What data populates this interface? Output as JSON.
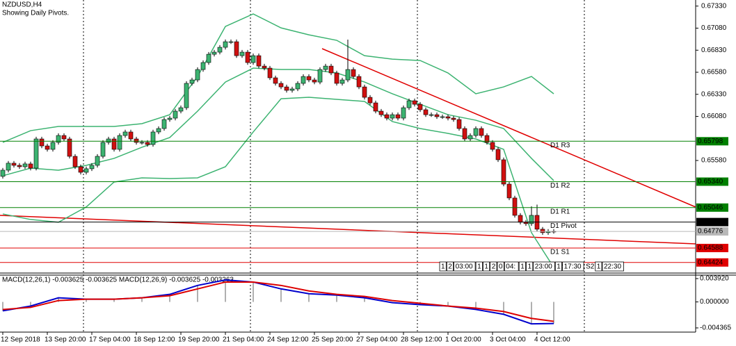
{
  "chart_data": [
    {
      "type": "candlestick",
      "title": "NZDUSD,H4",
      "subtitle": "Showing Daily Pivots.",
      "categories": [
        "12 Sep 2018",
        null,
        null,
        null,
        null,
        null,
        null,
        null,
        "13 Sep 20:00",
        null,
        null,
        null,
        null,
        null,
        null,
        null,
        "17 Sep 04:00",
        null,
        null,
        null,
        null,
        null,
        null,
        null,
        "18 Sep 12:00",
        null,
        null,
        null,
        null,
        null,
        null,
        null,
        "19 Sep 20:00",
        null,
        null,
        null,
        null,
        null,
        null,
        null,
        "21 Sep 04:00",
        null,
        null,
        null,
        null,
        null,
        null,
        null,
        "24 Sep 12:00",
        null,
        null,
        null,
        null,
        null,
        null,
        null,
        "25 Sep 20:00",
        null,
        null,
        null,
        null,
        null,
        null,
        null,
        "27 Sep 04:00",
        null,
        null,
        null,
        null,
        null,
        null,
        null,
        "28 Sep 12:00",
        null,
        null,
        null,
        null,
        null,
        null,
        null,
        "1 Oct 20:00",
        null,
        null,
        null,
        null,
        null,
        null,
        null,
        "3 Oct 04:00",
        null,
        null,
        null,
        null,
        null,
        null,
        null,
        "4 Oct 12:00",
        null,
        null,
        null
      ],
      "open": [
        0.654,
        0.6547,
        0.65549,
        0.65525,
        0.65509,
        0.65541,
        0.65493,
        0.65824,
        0.65745,
        0.65706,
        0.65785,
        0.65863,
        0.65824,
        0.65627,
        0.65509,
        0.65446,
        0.65486,
        0.65525,
        0.65627,
        0.65785,
        0.65824,
        0.65706,
        0.65863,
        0.65903,
        0.65824,
        0.65785,
        0.65785,
        0.65761,
        0.65903,
        0.65942,
        0.66044,
        0.6606,
        0.66139,
        0.66178,
        0.66454,
        0.66493,
        0.66611,
        0.6669,
        0.66784,
        0.66808,
        0.66863,
        0.66926,
        0.66926,
        0.66768,
        0.66808,
        0.6669,
        0.66768,
        0.6665,
        0.66627,
        0.66517,
        0.66454,
        0.66414,
        0.66375,
        0.66391,
        0.66454,
        0.66532,
        0.66493,
        0.66469,
        0.66611,
        0.6665,
        0.66572,
        0.66454,
        0.66493,
        0.66611,
        0.66532,
        0.66414,
        0.66296,
        0.66233,
        0.66139,
        0.66099,
        0.6606,
        0.66099,
        0.6606,
        0.66178,
        0.66257,
        0.66217,
        0.66155,
        0.66099,
        0.66099,
        0.66076,
        0.66076,
        0.6606,
        0.66044,
        0.65942,
        0.65824,
        0.65863,
        0.65942,
        0.65863,
        0.65785,
        0.65706,
        0.65588,
        0.65312,
        0.65155,
        0.64958,
        0.6488,
        0.64864,
        0.64958,
        0.64801,
        0.64762,
        0.64777
      ],
      "high": [
        0.65495,
        0.65574,
        0.65574,
        0.6555,
        0.65566,
        0.65566,
        0.65849,
        0.65849,
        0.6577,
        0.6581,
        0.65888,
        0.65888,
        0.65849,
        0.65652,
        0.65534,
        0.65511,
        0.6555,
        0.65652,
        0.6581,
        0.65849,
        0.65849,
        0.65888,
        0.65928,
        0.65928,
        0.65849,
        0.6581,
        0.6581,
        0.65928,
        0.65967,
        0.66069,
        0.66085,
        0.66164,
        0.66203,
        0.66479,
        0.66518,
        0.66636,
        0.66715,
        0.66809,
        0.66833,
        0.66888,
        0.66951,
        0.66951,
        0.66951,
        0.66833,
        0.66833,
        0.66793,
        0.66793,
        0.66675,
        0.66652,
        0.66542,
        0.66479,
        0.66439,
        0.66416,
        0.66479,
        0.66557,
        0.66557,
        0.66518,
        0.66636,
        0.66675,
        0.66675,
        0.66597,
        0.66518,
        0.6695,
        0.66636,
        0.66557,
        0.66439,
        0.66321,
        0.66258,
        0.66164,
        0.66124,
        0.66124,
        0.66124,
        0.66203,
        0.66282,
        0.66282,
        0.66242,
        0.6618,
        0.66124,
        0.66124,
        0.66101,
        0.66101,
        0.66085,
        0.66069,
        0.65967,
        0.65888,
        0.65967,
        0.65967,
        0.65888,
        0.6581,
        0.65731,
        0.65613,
        0.65337,
        0.6518,
        0.64983,
        0.64905,
        0.6506,
        0.6508,
        0.64826,
        0.64802,
        0.64802
      ],
      "low": [
        0.65375,
        0.65445,
        0.655,
        0.65484,
        0.65484,
        0.65468,
        0.65468,
        0.6572,
        0.65681,
        0.65681,
        0.6576,
        0.65799,
        0.65602,
        0.65484,
        0.65421,
        0.65421,
        0.65461,
        0.655,
        0.65602,
        0.6576,
        0.65681,
        0.65681,
        0.65838,
        0.65799,
        0.6576,
        0.6576,
        0.65736,
        0.65736,
        0.65878,
        0.65917,
        0.66019,
        0.66035,
        0.66114,
        0.66153,
        0.66429,
        0.66468,
        0.66586,
        0.66665,
        0.66759,
        0.66783,
        0.66838,
        0.66901,
        0.66743,
        0.66743,
        0.66665,
        0.66665,
        0.66625,
        0.66602,
        0.66492,
        0.66429,
        0.66389,
        0.6635,
        0.6635,
        0.66366,
        0.66429,
        0.66468,
        0.66444,
        0.66444,
        0.66586,
        0.66547,
        0.66429,
        0.66429,
        0.66468,
        0.66507,
        0.66389,
        0.66271,
        0.66208,
        0.66114,
        0.66074,
        0.66035,
        0.66035,
        0.66035,
        0.66035,
        0.66153,
        0.66192,
        0.6613,
        0.66074,
        0.66074,
        0.66051,
        0.66051,
        0.66035,
        0.66019,
        0.65917,
        0.65799,
        0.65799,
        0.65838,
        0.65838,
        0.6576,
        0.65681,
        0.65563,
        0.65287,
        0.6513,
        0.64933,
        0.64855,
        0.64839,
        0.64839,
        0.64776,
        0.64737,
        0.64737,
        0.64751
      ],
      "close": [
        0.6547,
        0.65549,
        0.65525,
        0.65509,
        0.65541,
        0.65493,
        0.65824,
        0.65745,
        0.65706,
        0.65785,
        0.65863,
        0.65824,
        0.65627,
        0.65509,
        0.65446,
        0.65486,
        0.65525,
        0.65627,
        0.65785,
        0.65824,
        0.65706,
        0.65863,
        0.65903,
        0.65824,
        0.65785,
        0.65785,
        0.65761,
        0.65903,
        0.65942,
        0.66044,
        0.6606,
        0.66139,
        0.66178,
        0.66454,
        0.66493,
        0.66611,
        0.6669,
        0.66784,
        0.66808,
        0.66863,
        0.66926,
        0.66926,
        0.66768,
        0.66808,
        0.6669,
        0.66768,
        0.6665,
        0.66627,
        0.66517,
        0.66454,
        0.66414,
        0.66375,
        0.66391,
        0.66454,
        0.66532,
        0.66493,
        0.66469,
        0.66611,
        0.6665,
        0.66572,
        0.66454,
        0.66493,
        0.66611,
        0.66532,
        0.66414,
        0.66296,
        0.66233,
        0.66139,
        0.66099,
        0.6606,
        0.66099,
        0.6606,
        0.66178,
        0.66257,
        0.66217,
        0.66155,
        0.66099,
        0.66099,
        0.66076,
        0.66076,
        0.6606,
        0.66044,
        0.65942,
        0.65824,
        0.65863,
        0.65942,
        0.65863,
        0.65785,
        0.65706,
        0.65588,
        0.65312,
        0.65155,
        0.64958,
        0.6488,
        0.64864,
        0.64958,
        0.64801,
        0.64762,
        0.64777,
        0.64776
      ],
      "up_color": "#3cb371",
      "down_color": "#d01010",
      "overlays": [
        {
          "color": "#3cb371",
          "x": [
            0,
            5,
            10,
            15,
            20,
            25,
            30,
            35,
            40,
            45,
            50,
            55,
            60,
            65,
            70,
            75,
            80,
            85,
            90,
            95,
            99
          ],
          "values": [
            0.65785,
            0.65918,
            0.65966,
            0.65966,
            0.65966,
            0.65997,
            0.66099,
            0.66532,
            0.67099,
            0.67241,
            0.67083,
            0.67004,
            0.66942,
            0.66768,
            0.66729,
            0.66713,
            0.66572,
            0.66336,
            0.66414,
            0.66532,
            0.66336
          ]
        },
        {
          "color": "#3cb371",
          "x": [
            0,
            5,
            10,
            15,
            20,
            25,
            30,
            35,
            40,
            45,
            50,
            55,
            60,
            65,
            70,
            75,
            80,
            85,
            90,
            95,
            99
          ],
          "values": [
            0.65407,
            0.65493,
            0.6547,
            0.65525,
            0.65604,
            0.6573,
            0.6584,
            0.66139,
            0.66469,
            0.66627,
            0.66611,
            0.66611,
            0.66572,
            0.66469,
            0.66336,
            0.66217,
            0.66099,
            0.66036,
            0.65942,
            0.65604,
            0.65352
          ]
        },
        {
          "color": "#3cb371",
          "x": [
            0,
            5,
            10,
            15,
            20,
            25,
            30,
            35,
            40,
            45,
            50,
            55,
            60,
            65,
            70,
            75,
            80,
            85,
            90,
            95,
            99
          ],
          "values": [
            0.64974,
            0.64911,
            0.6488,
            0.65053,
            0.65336,
            0.65383,
            0.65375,
            0.65383,
            0.65509,
            0.65903,
            0.6628,
            0.66296,
            0.66273,
            0.66249,
            0.66021,
            0.65942,
            0.65887,
            0.65824,
            0.65706,
            0.64762,
            0.64368
          ]
        }
      ],
      "ylim": [
        0.64304,
        0.67399
      ],
      "yticks": [
        {
          "value": 0.6733,
          "label": "0.67330"
        },
        {
          "value": 0.6708,
          "label": "0.67080"
        },
        {
          "value": 0.6683,
          "label": "0.66830"
        },
        {
          "value": 0.6658,
          "label": "0.66580"
        },
        {
          "value": 0.6633,
          "label": "0.66330"
        },
        {
          "value": 0.6608,
          "label": "0.66080"
        },
        {
          "value": 0.6558,
          "label": "0.65580"
        }
      ],
      "pivots": [
        {
          "name": "D1 R3",
          "value": 0.65798,
          "label": "0.65798",
          "color": "#008000"
        },
        {
          "name": "D1 R2",
          "value": 0.6534,
          "label": "0.65340",
          "color": "#008000"
        },
        {
          "name": "D1 R1",
          "value": 0.65046,
          "label": "0.65046",
          "color": "#008000"
        },
        {
          "name": "D1 Pivot",
          "value": 0.64882,
          "label": "0.64882",
          "color": "#000000"
        },
        {
          "name": "D1 S1",
          "value": 0.64588,
          "label": "0.64588",
          "color": "#e00000"
        },
        {
          "name": "D1 S2",
          "value": 0.64424,
          "label": "0.64424",
          "color": "#e00000"
        }
      ],
      "bid": {
        "value": 0.64776,
        "label": "0.64776",
        "color": "#b8b8b8"
      },
      "time_boxes": [
        "1",
        "2",
        "03:00",
        "1",
        "1",
        "2",
        "0",
        "04:",
        "1",
        "1",
        "23:00",
        "1",
        "17:30",
        "S2",
        "1",
        "22:30"
      ]
    },
    {
      "type": "macd",
      "label": "MACD(12,26,1) -0.003625 -0.003625 MACD(12,26,9) -0.003625 -0.003263",
      "x": [
        0,
        5,
        10,
        15,
        20,
        25,
        30,
        35,
        40,
        45,
        50,
        55,
        60,
        65,
        70,
        75,
        80,
        85,
        90,
        95,
        99
      ],
      "series": [
        {
          "color": "#0000cc",
          "values": [
            -0.0015,
            -0.00069,
            0.00069,
            0.00046,
            0.00046,
            0.00069,
            0.00127,
            0.00277,
            0.00369,
            0.00334,
            0.00219,
            0.00138,
            0.00115,
            0.00069,
            -0.00012,
            -0.00046,
            -0.00069,
            -0.00127,
            -0.00208,
            -0.00369,
            -0.003625
          ]
        },
        {
          "color": "#dd0000",
          "values": [
            -0.00127,
            -0.00092,
            0.00023,
            0.00046,
            0.00046,
            0.00069,
            0.00104,
            0.00219,
            0.00334,
            0.00334,
            0.00277,
            0.00184,
            0.00127,
            0.00092,
            0.00023,
            -0.00023,
            -0.00069,
            -0.00104,
            -0.00161,
            -0.00277,
            -0.003263
          ]
        }
      ],
      "histogram_color": "#b0b0b0",
      "ylim": [
        -0.00507,
        0.0045
      ],
      "yticks": [
        {
          "value": 0.00392,
          "label": "0.003920"
        },
        {
          "value": 0,
          "label": "0.000000"
        },
        {
          "value": -0.004365,
          "label": "-0.004365"
        }
      ]
    }
  ]
}
